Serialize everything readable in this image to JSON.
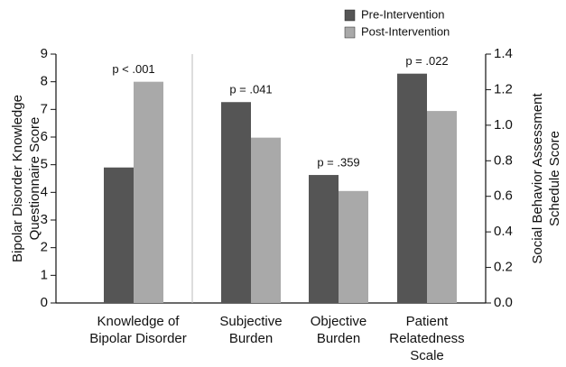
{
  "chart_data": {
    "type": "bar",
    "categories": [
      [
        "Knowledge of",
        "Bipolar Disorder"
      ],
      [
        "Subjective",
        "Burden"
      ],
      [
        "Objective",
        "Burden"
      ],
      [
        "Patient",
        "Relatedness",
        "Scale"
      ]
    ],
    "category_axis": [
      "y",
      "y2",
      "y2",
      "y2"
    ],
    "series": [
      {
        "name": "Pre-Intervention",
        "color": "#555555",
        "values": [
          4.9,
          1.13,
          0.72,
          1.29
        ]
      },
      {
        "name": "Post-Intervention",
        "color": "#a9a9a9",
        "values": [
          8.0,
          0.93,
          0.63,
          1.08
        ]
      }
    ],
    "annotations": [
      "p < .001",
      "p = .041",
      "p = .359",
      "p = .022"
    ],
    "ylabel": [
      "Bipolar Disorder Knowledge",
      "Questionnaire Score"
    ],
    "y2label": [
      "Social Behavior Assessment",
      "Schedule Score"
    ],
    "ylim": [
      0,
      9
    ],
    "yticks": [
      0,
      1,
      2,
      3,
      4,
      5,
      6,
      7,
      8,
      9
    ],
    "y2lim": [
      0,
      1.4
    ],
    "y2ticks": [
      {
        "value": 0,
        "label": "0.0"
      },
      0.2,
      0.4,
      0.6,
      0.8,
      {
        "value": 1,
        "label": "1.0"
      },
      1.2,
      1.4
    ],
    "grid": false
  }
}
